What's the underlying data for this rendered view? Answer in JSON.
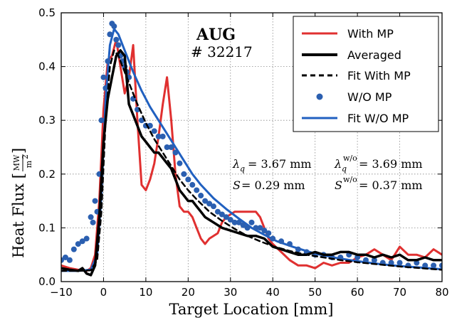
{
  "chart_data": {
    "type": "line",
    "xlabel": "Target Location [mm]",
    "ylabel": "Heat Flux [",
    "ylabel_unit_num": "MW",
    "ylabel_unit_den": "m",
    "ylabel_unit_exp": "2",
    "ylabel_close": "]",
    "xlim": [
      -10,
      80
    ],
    "ylim": [
      0.0,
      0.5
    ],
    "xticks": [
      -10,
      0,
      10,
      20,
      30,
      40,
      50,
      60,
      70,
      80
    ],
    "yticks": [
      0.0,
      0.1,
      0.2,
      0.3,
      0.4,
      0.5
    ],
    "xtick_labels": [
      "−10",
      "0",
      "10",
      "20",
      "30",
      "40",
      "50",
      "60",
      "70",
      "80"
    ],
    "ytick_labels": [
      "0.0",
      "0.1",
      "0.2",
      "0.3",
      "0.4",
      "0.5"
    ],
    "grid": true,
    "legend_position": "top-right",
    "colors": {
      "with_mp": "#e03030",
      "averaged": "#000000",
      "fit_with_mp": "#000000",
      "wo_mp": "#2b5fb0",
      "fit_wo_mp": "#2060c0"
    },
    "annotations": {
      "machine": "AUG",
      "shot": "# 32217",
      "lambda_sym": "λ",
      "lambda_sub": "q",
      "lambda_value": "= 3.67 mm",
      "lambda_wo_sup": "w/o",
      "lambda_wo_value": "= 3.69 mm",
      "s_sym": "S",
      "s_value": "= 0.29 mm",
      "s_wo_sup": "w/o",
      "s_wo_value": "= 0.37 mm"
    },
    "series": [
      {
        "name": "With MP",
        "style": "line",
        "x": [
          -10,
          -8,
          -6,
          -4,
          -3,
          -2,
          -1,
          0,
          1,
          2,
          3,
          4,
          5,
          6,
          7,
          8,
          9,
          10,
          11,
          12,
          13,
          14,
          15,
          16,
          17,
          18,
          19,
          20,
          21,
          22,
          23,
          24,
          25,
          26,
          27,
          28,
          29,
          30,
          31,
          32,
          33,
          34,
          35,
          36,
          37,
          38,
          39,
          40,
          42,
          44,
          46,
          48,
          50,
          52,
          54,
          56,
          58,
          60,
          62,
          64,
          66,
          68,
          70,
          72,
          74,
          76,
          78,
          80
        ],
        "y": [
          0.03,
          0.025,
          0.022,
          0.02,
          0.025,
          0.05,
          0.15,
          0.32,
          0.41,
          0.42,
          0.45,
          0.4,
          0.35,
          0.38,
          0.44,
          0.3,
          0.18,
          0.17,
          0.19,
          0.22,
          0.27,
          0.33,
          0.38,
          0.3,
          0.2,
          0.14,
          0.13,
          0.13,
          0.12,
          0.1,
          0.08,
          0.07,
          0.08,
          0.085,
          0.09,
          0.11,
          0.12,
          0.125,
          0.13,
          0.13,
          0.13,
          0.13,
          0.13,
          0.13,
          0.12,
          0.1,
          0.08,
          0.07,
          0.055,
          0.04,
          0.03,
          0.03,
          0.025,
          0.035,
          0.03,
          0.035,
          0.035,
          0.045,
          0.05,
          0.06,
          0.05,
          0.04,
          0.065,
          0.05,
          0.05,
          0.045,
          0.06,
          0.05
        ]
      },
      {
        "name": "Averaged",
        "style": "line",
        "x": [
          -10,
          -8,
          -6,
          -5,
          -4,
          -3,
          -2,
          -1,
          0,
          1,
          2,
          3,
          4,
          5,
          6,
          7,
          8,
          9,
          10,
          11,
          12,
          13,
          14,
          15,
          16,
          17,
          18,
          19,
          20,
          21,
          22,
          23,
          24,
          25,
          26,
          28,
          30,
          32,
          34,
          36,
          38,
          40,
          42,
          44,
          46,
          48,
          50,
          52,
          54,
          56,
          58,
          60,
          62,
          64,
          66,
          68,
          70,
          72,
          74,
          76,
          78,
          80
        ],
        "y": [
          0.025,
          0.022,
          0.02,
          0.025,
          0.015,
          0.012,
          0.03,
          0.12,
          0.26,
          0.34,
          0.38,
          0.42,
          0.43,
          0.42,
          0.33,
          0.31,
          0.29,
          0.27,
          0.26,
          0.25,
          0.24,
          0.24,
          0.23,
          0.22,
          0.21,
          0.19,
          0.17,
          0.16,
          0.15,
          0.15,
          0.14,
          0.13,
          0.12,
          0.115,
          0.11,
          0.1,
          0.095,
          0.09,
          0.085,
          0.085,
          0.08,
          0.065,
          0.06,
          0.055,
          0.05,
          0.05,
          0.055,
          0.05,
          0.05,
          0.055,
          0.055,
          0.05,
          0.05,
          0.045,
          0.05,
          0.045,
          0.05,
          0.04,
          0.04,
          0.045,
          0.04,
          0.04
        ]
      },
      {
        "name": "Fit With MP",
        "style": "dashed",
        "x": [
          -10,
          -6,
          -3,
          -1.5,
          -0.5,
          0.5,
          1.5,
          2.5,
          3.5,
          4.5,
          6,
          8,
          10,
          12,
          14,
          16,
          18,
          20,
          22,
          25,
          28,
          31,
          34,
          37,
          40,
          44,
          48,
          52,
          56,
          60,
          65,
          70,
          75,
          80
        ],
        "y": [
          0.02,
          0.02,
          0.021,
          0.04,
          0.13,
          0.3,
          0.4,
          0.43,
          0.42,
          0.4,
          0.37,
          0.33,
          0.295,
          0.265,
          0.24,
          0.215,
          0.19,
          0.17,
          0.153,
          0.13,
          0.113,
          0.098,
          0.085,
          0.075,
          0.066,
          0.057,
          0.05,
          0.045,
          0.04,
          0.036,
          0.032,
          0.028,
          0.025,
          0.022
        ]
      },
      {
        "name": "W/O MP",
        "style": "markers",
        "x": [
          -10,
          -9,
          -8,
          -7,
          -6,
          -5,
          -4,
          -3,
          -2.5,
          -2,
          -1.5,
          -1,
          -0.5,
          0,
          0.5,
          1,
          1.5,
          2,
          2.5,
          3,
          3.5,
          4,
          4.5,
          5,
          5.5,
          6,
          7,
          8,
          9,
          10,
          11,
          12,
          13,
          14,
          15,
          16,
          17,
          18,
          19,
          20,
          21,
          22,
          23,
          24,
          25,
          26,
          27,
          28,
          29,
          30,
          31,
          32,
          33,
          34,
          35,
          36,
          37,
          38,
          39,
          40,
          42,
          44,
          46,
          48,
          50,
          52,
          54,
          56,
          58,
          60,
          62,
          64,
          66,
          68,
          70,
          72,
          74,
          76,
          78,
          80
        ],
        "y": [
          0.04,
          0.045,
          0.04,
          0.06,
          0.07,
          0.075,
          0.08,
          0.12,
          0.11,
          0.15,
          0.13,
          0.2,
          0.3,
          0.38,
          0.36,
          0.41,
          0.46,
          0.48,
          0.475,
          0.45,
          0.44,
          0.42,
          0.41,
          0.4,
          0.39,
          0.38,
          0.34,
          0.32,
          0.3,
          0.29,
          0.29,
          0.28,
          0.27,
          0.27,
          0.25,
          0.25,
          0.24,
          0.22,
          0.2,
          0.19,
          0.18,
          0.17,
          0.16,
          0.15,
          0.145,
          0.14,
          0.13,
          0.125,
          0.12,
          0.115,
          0.11,
          0.11,
          0.105,
          0.1,
          0.11,
          0.1,
          0.1,
          0.095,
          0.09,
          0.08,
          0.075,
          0.07,
          0.06,
          0.055,
          0.05,
          0.05,
          0.045,
          0.045,
          0.05,
          0.045,
          0.04,
          0.04,
          0.035,
          0.035,
          0.035,
          0.03,
          0.035,
          0.03,
          0.03,
          0.03
        ]
      },
      {
        "name": "Fit W/O MP",
        "style": "line",
        "x": [
          -10,
          -6,
          -3,
          -1.5,
          -0.5,
          0.5,
          1.5,
          2.5,
          3.5,
          5,
          7,
          9,
          11,
          13,
          15,
          17,
          19,
          21,
          23,
          26,
          29,
          32,
          35,
          38,
          41,
          45,
          50,
          55,
          60,
          65,
          70,
          75,
          80
        ],
        "y": [
          0.02,
          0.02,
          0.022,
          0.05,
          0.16,
          0.34,
          0.44,
          0.47,
          0.46,
          0.43,
          0.39,
          0.355,
          0.325,
          0.3,
          0.275,
          0.25,
          0.225,
          0.2,
          0.18,
          0.155,
          0.135,
          0.117,
          0.1,
          0.087,
          0.075,
          0.064,
          0.052,
          0.044,
          0.038,
          0.033,
          0.029,
          0.026,
          0.023
        ]
      }
    ]
  }
}
